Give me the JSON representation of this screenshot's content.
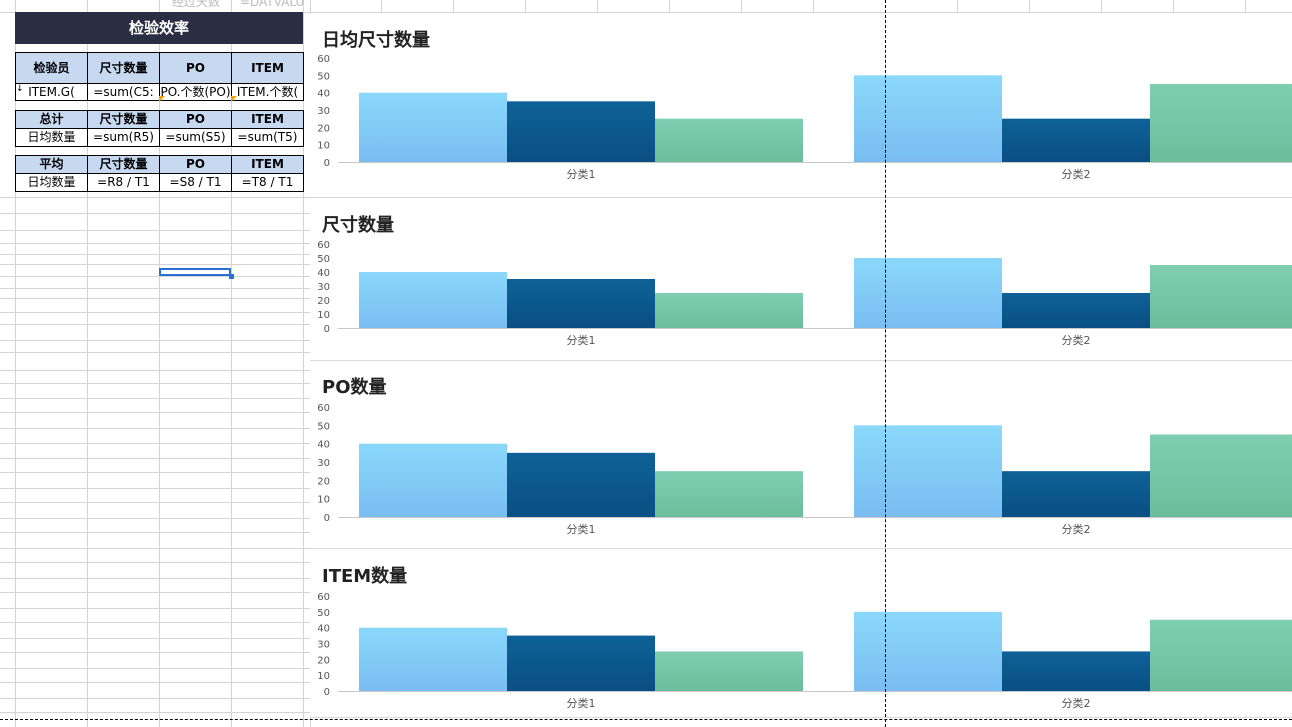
{
  "sheet": {
    "faded_label": "经过天数",
    "faded_formula": "=DATVALU",
    "title": "检验效率",
    "table1": {
      "headers": [
        "检验员",
        "尺寸数量",
        "PO",
        "ITEM"
      ],
      "row": [
        "ITEM.G(",
        "=sum(C5:",
        "PO.个数(PO)",
        "ITEM.个数("
      ]
    },
    "table2": {
      "headers": [
        "总计",
        "尺寸数量",
        "PO",
        "ITEM"
      ],
      "row": [
        "日均数量",
        "=sum(R5)",
        "=sum(S5)",
        "=sum(T5)"
      ]
    },
    "table3": {
      "headers": [
        "平均",
        "尺寸数量",
        "PO",
        "ITEM"
      ],
      "row": [
        "日均数量",
        "=R8 / T1",
        "=S8 / T1",
        "=T8 / T1"
      ]
    }
  },
  "colors": {
    "series1": "#7fc9f7",
    "series2": "#0b5b93",
    "series3": "#77c6a8",
    "header_bg": "#c6d9f1",
    "title_bg": "#2b2d42"
  },
  "chart_data": [
    {
      "type": "bar",
      "title": "日均尺寸数量",
      "categories": [
        "分类1",
        "分类2"
      ],
      "series": [
        {
          "values": [
            40,
            50
          ]
        },
        {
          "values": [
            35,
            25
          ]
        },
        {
          "values": [
            25,
            45
          ]
        }
      ],
      "ylim": [
        0,
        60
      ],
      "yticks": [
        0,
        10,
        20,
        30,
        40,
        50,
        60
      ],
      "legend": "none",
      "grid": false
    },
    {
      "type": "bar",
      "title": "尺寸数量",
      "categories": [
        "分类1",
        "分类2"
      ],
      "series": [
        {
          "values": [
            40,
            50
          ]
        },
        {
          "values": [
            35,
            25
          ]
        },
        {
          "values": [
            25,
            45
          ]
        }
      ],
      "ylim": [
        0,
        60
      ],
      "yticks": [
        0,
        10,
        20,
        30,
        40,
        50,
        60
      ],
      "legend": "none",
      "grid": false
    },
    {
      "type": "bar",
      "title": "PO数量",
      "categories": [
        "分类1",
        "分类2"
      ],
      "series": [
        {
          "values": [
            40,
            50
          ]
        },
        {
          "values": [
            35,
            25
          ]
        },
        {
          "values": [
            25,
            45
          ]
        }
      ],
      "ylim": [
        0,
        60
      ],
      "yticks": [
        0,
        10,
        20,
        30,
        40,
        50,
        60
      ],
      "legend": "none",
      "grid": false
    },
    {
      "type": "bar",
      "title": "ITEM数量",
      "categories": [
        "分类1",
        "分类2"
      ],
      "series": [
        {
          "values": [
            40,
            50
          ]
        },
        {
          "values": [
            35,
            25
          ]
        },
        {
          "values": [
            25,
            45
          ]
        }
      ],
      "ylim": [
        0,
        60
      ],
      "yticks": [
        0,
        10,
        20,
        30,
        40,
        50,
        60
      ],
      "legend": "none",
      "grid": false
    }
  ]
}
